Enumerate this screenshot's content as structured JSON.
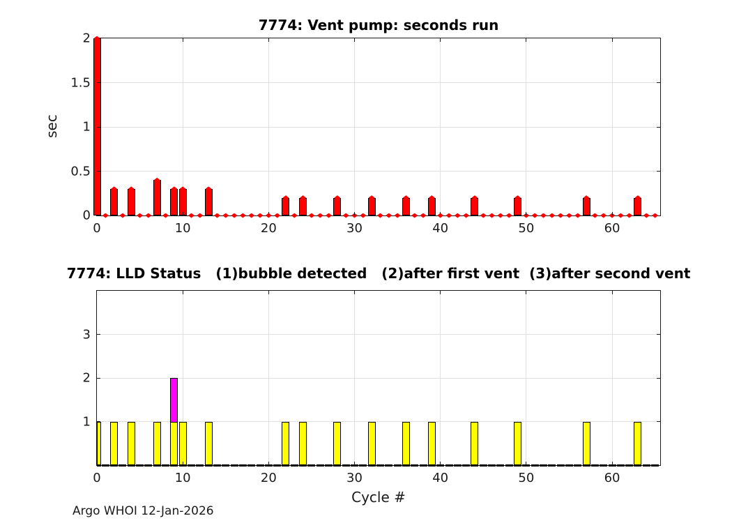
{
  "figure": {
    "background": "#ffffff",
    "footer": "Argo WHOI 12-Jan-2026",
    "text_color": "#1a1a1a",
    "grid_color": "#e0e0e0"
  },
  "chart_data": [
    {
      "type": "bar",
      "title": "7774: Vent pump: seconds run",
      "ylabel": "sec",
      "xlim": [
        0,
        65.6
      ],
      "ylim": [
        0,
        2
      ],
      "yticks": [
        0,
        0.5,
        1,
        1.5,
        2
      ],
      "xticks": [
        0,
        10,
        20,
        30,
        40,
        50,
        60
      ],
      "grid": true,
      "legend": "none",
      "bar_color": "#ff0000",
      "bar_edge_color": "#000000",
      "marker": "diamond",
      "marker_color": "#ff0000",
      "x_is_index": true,
      "values": [
        2,
        0,
        0.3,
        0,
        0.3,
        0,
        0,
        0.4,
        0,
        0.3,
        0.3,
        0,
        0,
        0.3,
        0,
        0,
        0,
        0,
        0,
        0,
        0,
        0,
        0.2,
        0,
        0.2,
        0,
        0,
        0,
        0.2,
        0,
        0,
        0,
        0.2,
        0,
        0,
        0,
        0.2,
        0,
        0,
        0.2,
        0,
        0,
        0,
        0,
        0.2,
        0,
        0,
        0,
        0,
        0.2,
        0,
        0,
        0,
        0,
        0,
        0,
        0,
        0.2,
        0,
        0,
        0,
        0,
        0,
        0.2,
        0,
        0
      ]
    },
    {
      "type": "bar",
      "title": "7774: LLD Status   (1)bubble detected   (2)after first vent  (3)after second vent",
      "xlabel": "Cycle #",
      "xlim": [
        0,
        65.6
      ],
      "ylim": [
        0,
        4
      ],
      "yticks": [
        1,
        2,
        3
      ],
      "xticks": [
        0,
        10,
        20,
        30,
        40,
        50,
        60
      ],
      "grid": true,
      "legend": "none",
      "x_is_index": true,
      "series": [
        {
          "name": "lld-status-2-magenta",
          "color": "#ff00ff",
          "values": [
            0,
            0,
            0,
            0,
            0,
            0,
            0,
            0,
            0,
            2,
            0,
            0,
            0,
            0,
            0,
            0,
            0,
            0,
            0,
            0,
            0,
            0,
            0,
            0,
            0,
            0,
            0,
            0,
            0,
            0,
            0,
            0,
            0,
            0,
            0,
            0,
            0,
            0,
            0,
            0,
            0,
            0,
            0,
            0,
            0,
            0,
            0,
            0,
            0,
            0,
            0,
            0,
            0,
            0,
            0,
            0,
            0,
            0,
            0,
            0,
            0,
            0,
            0,
            0,
            0,
            0
          ]
        },
        {
          "name": "lld-status-1-yellow",
          "color": "#ffff00",
          "values": [
            1,
            0,
            1,
            0,
            1,
            0,
            0,
            1,
            0,
            1,
            1,
            0,
            0,
            1,
            0,
            0,
            0,
            0,
            0,
            0,
            0,
            0,
            1,
            0,
            1,
            0,
            0,
            0,
            1,
            0,
            0,
            0,
            1,
            0,
            0,
            0,
            1,
            0,
            0,
            1,
            0,
            0,
            0,
            0,
            1,
            0,
            0,
            0,
            0,
            1,
            0,
            0,
            0,
            0,
            0,
            0,
            0,
            1,
            0,
            0,
            0,
            0,
            0,
            1,
            0,
            0
          ]
        }
      ]
    }
  ]
}
